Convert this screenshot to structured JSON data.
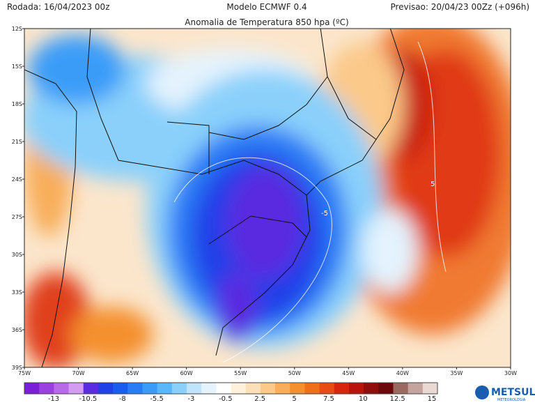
{
  "header": {
    "run": "Rodada: 16/04/2023 00z",
    "model": "Modelo ECMWF 0.4",
    "forecast": "Previsao: 20/04/23 00Zz (+096h)",
    "title": "Anomalia de Temperatura 850 hpa (ºC)"
  },
  "map": {
    "lat_labels": [
      "12S",
      "15S",
      "18S",
      "21S",
      "24S",
      "27S",
      "30S",
      "33S",
      "36S",
      "39S"
    ],
    "lon_labels": [
      "75W",
      "70W",
      "65W",
      "60W",
      "55W",
      "50W",
      "45W",
      "40W",
      "35W",
      "30W"
    ],
    "contour_labels": [
      "-5",
      "5"
    ]
  },
  "colorbar": {
    "ticks": [
      -13,
      -10.5,
      -8,
      -5.5,
      -3,
      -0.5,
      2.5,
      5,
      7.5,
      10,
      12.5,
      15
    ],
    "colors": [
      "#7a1fd8",
      "#9a3fe0",
      "#b86ae8",
      "#d49cf0",
      "#5a2be0",
      "#2040e8",
      "#1a5cf0",
      "#2a7cf5",
      "#3a9cf8",
      "#5ab8fa",
      "#8ad0fb",
      "#bfe4fc",
      "#e4f3fd",
      "#ffffff",
      "#fff1dc",
      "#fde0b8",
      "#fbc98a",
      "#f8ae5a",
      "#f4902e",
      "#ef6f1a",
      "#e84c12",
      "#d8260e",
      "#b9140c",
      "#8f0d0a",
      "#6a0a0a",
      "#9a6a60",
      "#c4a49c",
      "#ead8d2"
    ]
  },
  "logo": {
    "name": "METSUL",
    "sub": "METEOROLOGIA"
  }
}
